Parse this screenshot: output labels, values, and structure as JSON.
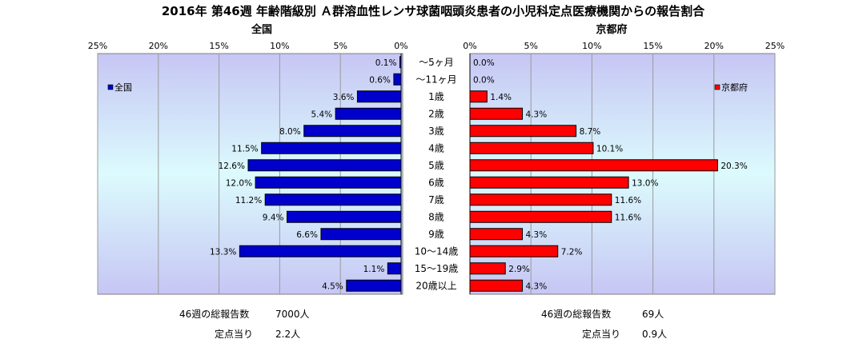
{
  "title": "2016年 第46週 年齢階級別 Ａ群溶血性レンサ球菌咽頭炎患者の小児科定点医療機関からの報告割合",
  "chart_data": {
    "type": "bar",
    "orientation": "horizontal",
    "categories": [
      "～5ヶ月",
      "～11ヶ月",
      "1歳",
      "2歳",
      "3歳",
      "4歳",
      "5歳",
      "6歳",
      "7歳",
      "8歳",
      "9歳",
      "10～14歳",
      "15～19歳",
      "20歳以上"
    ],
    "panels": [
      {
        "name": "全国",
        "legend": "全国",
        "legend_position": "top-left",
        "direction": "left",
        "color": "#0000cc",
        "values": [
          0.1,
          0.6,
          3.6,
          5.4,
          8.0,
          11.5,
          12.6,
          12.0,
          11.2,
          9.4,
          6.6,
          13.3,
          1.1,
          4.5
        ],
        "labels": [
          "0.1%",
          "0.6%",
          "3.6%",
          "5.4%",
          "8.0%",
          "11.5%",
          "12.6%",
          "12.0%",
          "11.2%",
          "9.4%",
          "6.6%",
          "13.3%",
          "1.1%",
          "4.5%"
        ],
        "xlim": [
          0,
          25
        ],
        "ticks": [
          25,
          20,
          15,
          10,
          5,
          0
        ],
        "tick_labels": [
          "25%",
          "20%",
          "15%",
          "10%",
          "5%",
          "0%"
        ]
      },
      {
        "name": "京都府",
        "legend": "京都府",
        "legend_position": "top-right",
        "direction": "right",
        "color": "#ff0000",
        "values": [
          0.0,
          0.0,
          1.4,
          4.3,
          8.7,
          10.1,
          20.3,
          13.0,
          11.6,
          11.6,
          4.3,
          7.2,
          2.9,
          4.3
        ],
        "labels": [
          "0.0%",
          "0.0%",
          "1.4%",
          "4.3%",
          "8.7%",
          "10.1%",
          "20.3%",
          "13.0%",
          "11.6%",
          "11.6%",
          "4.3%",
          "7.2%",
          "2.9%",
          "4.3%"
        ],
        "xlim": [
          0,
          25
        ],
        "ticks": [
          0,
          5,
          10,
          15,
          20,
          25
        ],
        "tick_labels": [
          "0%",
          "5%",
          "10%",
          "15%",
          "20%",
          "25%"
        ]
      }
    ]
  },
  "summary": {
    "national": {
      "total_label": "46週の総報告数",
      "total_value": "7000人",
      "per_label": "定点当り",
      "per_value": "2.2人"
    },
    "kyoto": {
      "total_label": "46週の総報告数",
      "total_value": "69人",
      "per_label": "定点当り",
      "per_value": "0.9人"
    }
  }
}
